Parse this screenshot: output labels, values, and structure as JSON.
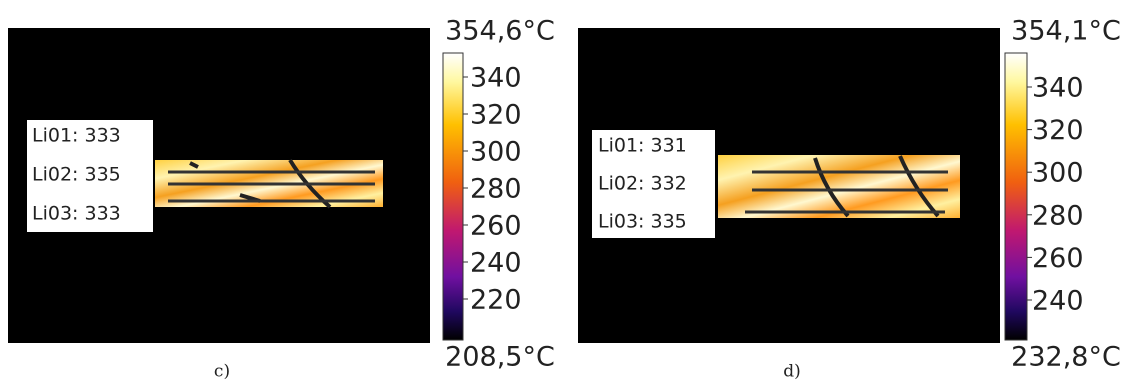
{
  "panels": [
    {
      "caption": "c)",
      "max_label": "354,6°C",
      "min_label": "208,5°C",
      "ticks": [
        340,
        320,
        300,
        280,
        260,
        240,
        220
      ],
      "lines": [
        "Li01: 333",
        "Li02: 335",
        "Li03: 333"
      ]
    },
    {
      "caption": "d)",
      "max_label": "354,1°C",
      "min_label": "232,8°C",
      "ticks": [
        340,
        320,
        300,
        280,
        260,
        240
      ],
      "lines": [
        "Li01: 331",
        "Li02: 332",
        "Li03: 335"
      ]
    }
  ]
}
